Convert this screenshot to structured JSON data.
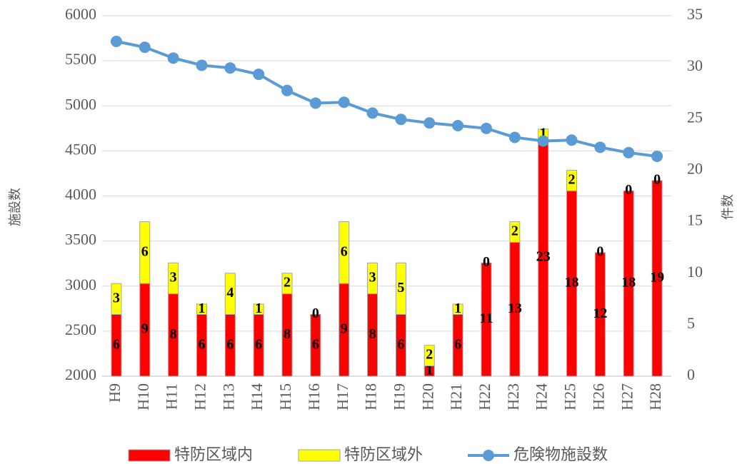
{
  "chart_data": {
    "type": "bar",
    "stacked": true,
    "ylabel": "施設数",
    "y2label": "件数",
    "categories": [
      "H9",
      "H10",
      "H11",
      "H12",
      "H13",
      "H14",
      "H15",
      "H16",
      "H17",
      "H18",
      "H19",
      "H20",
      "H21",
      "H22",
      "H23",
      "H24",
      "H25",
      "H26",
      "H27",
      "H28"
    ],
    "series": [
      {
        "name": "特防区域内",
        "type": "bar",
        "axis": "y2",
        "color": "#ff0000",
        "values": [
          6,
          9,
          8,
          6,
          6,
          6,
          8,
          6,
          9,
          8,
          6,
          1,
          6,
          11,
          13,
          23,
          18,
          12,
          18,
          19
        ]
      },
      {
        "name": "特防区域外",
        "type": "bar",
        "axis": "y2",
        "color": "#ffff00",
        "values": [
          3,
          6,
          3,
          1,
          4,
          1,
          2,
          0,
          6,
          3,
          5,
          2,
          1,
          0,
          2,
          1,
          2,
          0,
          0,
          0
        ]
      },
      {
        "name": "危険物施設数",
        "type": "line",
        "axis": "y",
        "color": "#5b9bd5",
        "values": [
          5715,
          5650,
          5530,
          5450,
          5420,
          5350,
          5170,
          5030,
          5040,
          4920,
          4850,
          4810,
          4780,
          4750,
          4650,
          4610,
          4620,
          4540,
          4480,
          4440
        ]
      }
    ],
    "ylim": [
      2000,
      6000
    ],
    "yticks": [
      2000,
      2500,
      3000,
      3500,
      4000,
      4500,
      5000,
      5500,
      6000
    ],
    "y2lim": [
      0,
      35
    ],
    "y2ticks": [
      0,
      5,
      10,
      15,
      20,
      25,
      30,
      35
    ],
    "grid": true,
    "legend": "bottom"
  }
}
